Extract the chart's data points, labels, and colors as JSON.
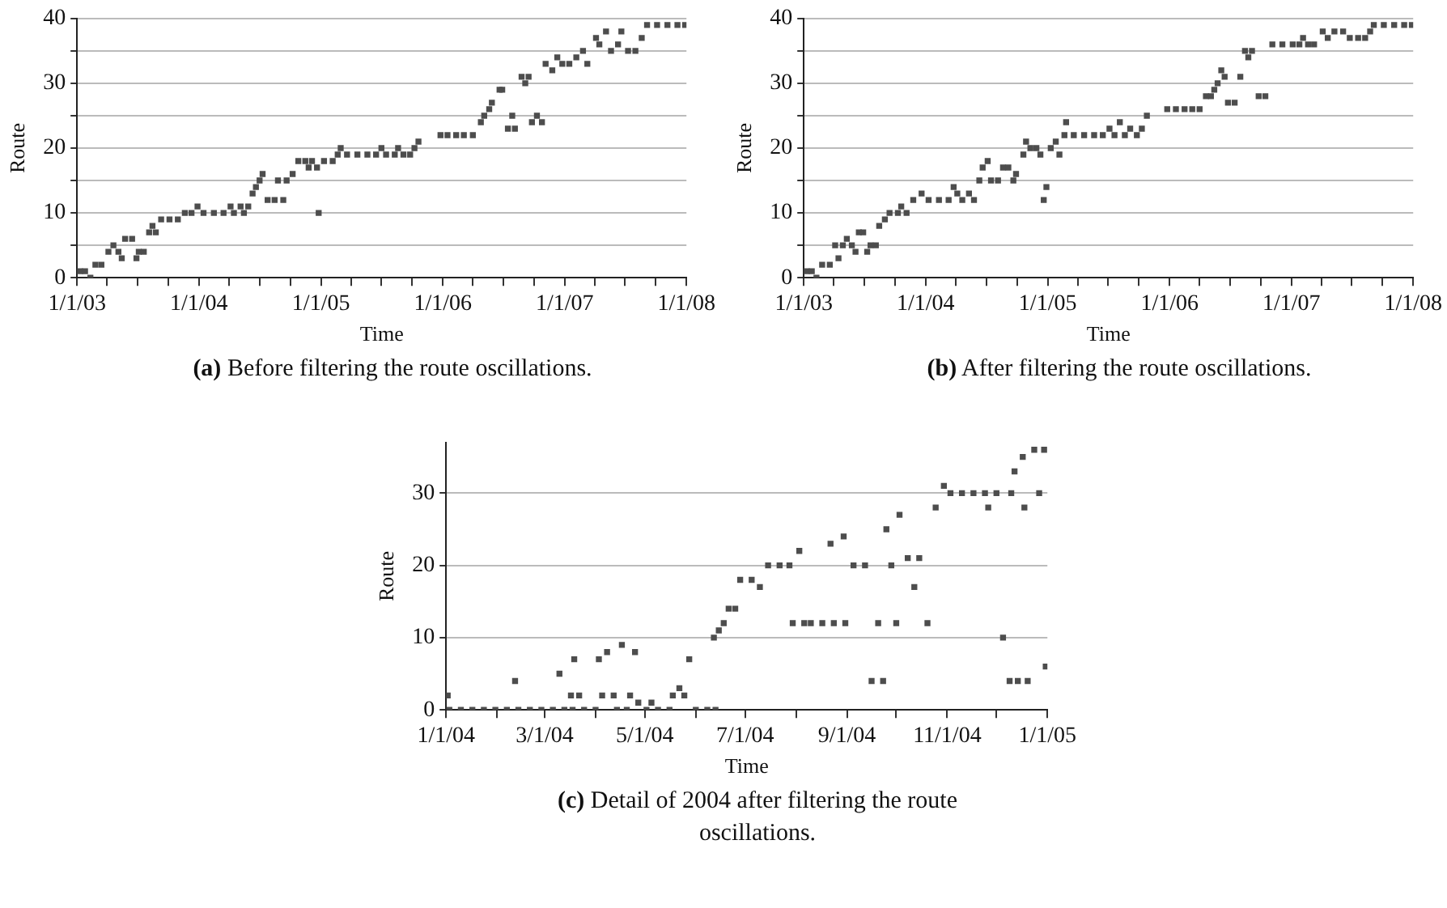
{
  "chart_data": [
    {
      "type": "scatter",
      "title": "(a) Before filtering the route oscillations.",
      "xlabel": "Time",
      "ylabel": "Route",
      "marker": "square",
      "grid": "y",
      "xlim": [
        "2003-01-01",
        "2008-01-01"
      ],
      "ylim": [
        0,
        40
      ],
      "xticks": [
        {
          "value": "2003-01-01",
          "label": "1/1/03"
        },
        {
          "value": "2003-04-01",
          "label": null
        },
        {
          "value": "2003-07-01",
          "label": null
        },
        {
          "value": "2003-10-01",
          "label": null
        },
        {
          "value": "2004-01-01",
          "label": "1/1/04"
        },
        {
          "value": "2004-04-01",
          "label": null
        },
        {
          "value": "2004-07-01",
          "label": null
        },
        {
          "value": "2004-10-01",
          "label": null
        },
        {
          "value": "2005-01-01",
          "label": "1/1/05"
        },
        {
          "value": "2005-04-01",
          "label": null
        },
        {
          "value": "2005-07-01",
          "label": null
        },
        {
          "value": "2005-10-01",
          "label": null
        },
        {
          "value": "2006-01-01",
          "label": "1/1/06"
        },
        {
          "value": "2006-04-01",
          "label": null
        },
        {
          "value": "2006-07-01",
          "label": null
        },
        {
          "value": "2006-10-01",
          "label": null
        },
        {
          "value": "2007-01-01",
          "label": "1/1/07"
        },
        {
          "value": "2007-04-01",
          "label": null
        },
        {
          "value": "2007-07-01",
          "label": null
        },
        {
          "value": "2007-10-01",
          "label": null
        },
        {
          "value": "2008-01-01",
          "label": "1/1/08"
        }
      ],
      "yticks": [
        0,
        {
          "value": 5,
          "label": null
        },
        10,
        {
          "value": 15,
          "label": null
        },
        20,
        {
          "value": 25,
          "label": null
        },
        30,
        {
          "value": 35,
          "label": null
        },
        40
      ],
      "series": [
        {
          "color": "#4d4d4d",
          "x": [
            "2003-01-10",
            "2003-01-25",
            "2003-02-10",
            "2003-02-25",
            "2003-03-15",
            "2003-04-05",
            "2003-04-20",
            "2003-05-05",
            "2003-05-15",
            "2003-05-25",
            "2003-06-15",
            "2003-06-28",
            "2003-07-05",
            "2003-07-20",
            "2003-08-05",
            "2003-08-15",
            "2003-08-25",
            "2003-09-10",
            "2003-10-05",
            "2003-10-30",
            "2003-11-20",
            "2003-12-10",
            "2003-12-28",
            "2004-01-15",
            "2004-02-15",
            "2004-03-15",
            "2004-04-05",
            "2004-04-15",
            "2004-05-05",
            "2004-05-15",
            "2004-05-28",
            "2004-06-10",
            "2004-06-20",
            "2004-07-01",
            "2004-07-10",
            "2004-07-25",
            "2004-08-15",
            "2004-09-10",
            "2004-08-25",
            "2004-09-20",
            "2004-10-08",
            "2004-10-25",
            "2004-11-15",
            "2004-12-05",
            "2004-11-25",
            "2004-12-20",
            "2004-12-25",
            "2005-01-10",
            "2005-02-05",
            "2005-02-20",
            "2005-03-01",
            "2005-03-20",
            "2005-04-20",
            "2005-05-20",
            "2005-06-15",
            "2005-07-01",
            "2005-07-15",
            "2005-08-10",
            "2005-08-20",
            "2005-09-05",
            "2005-09-25",
            "2005-10-08",
            "2005-10-20",
            "2005-12-25",
            "2006-01-15",
            "2006-02-10",
            "2006-03-05",
            "2006-04-01",
            "2006-04-25",
            "2006-05-05",
            "2006-05-20",
            "2006-05-28",
            "2006-06-20",
            "2006-06-28",
            "2006-07-15",
            "2006-08-05",
            "2006-07-28",
            "2006-08-25",
            "2006-09-05",
            "2006-09-15",
            "2006-09-25",
            "2006-10-10",
            "2006-10-25",
            "2006-11-05",
            "2006-11-25",
            "2006-12-10",
            "2006-12-25",
            "2007-01-15",
            "2007-02-05",
            "2007-02-25",
            "2007-03-10",
            "2007-04-05",
            "2007-04-15",
            "2007-05-05",
            "2007-05-20",
            "2007-06-10",
            "2007-06-20",
            "2007-07-10",
            "2007-08-01",
            "2007-08-20",
            "2007-09-05",
            "2007-10-05",
            "2007-11-05",
            "2007-12-05",
            "2007-12-28"
          ],
          "values": [
            1,
            1,
            0,
            2,
            2,
            4,
            5,
            4,
            3,
            6,
            6,
            3,
            4,
            4,
            7,
            8,
            7,
            9,
            9,
            9,
            10,
            10,
            11,
            10,
            10,
            10,
            11,
            10,
            11,
            10,
            11,
            13,
            14,
            15,
            16,
            12,
            12,
            12,
            15,
            15,
            16,
            18,
            18,
            18,
            17,
            17,
            10,
            18,
            18,
            19,
            20,
            19,
            19,
            19,
            19,
            20,
            19,
            19,
            20,
            19,
            19,
            20,
            21,
            22,
            22,
            22,
            22,
            22,
            24,
            25,
            26,
            27,
            29,
            29,
            23,
            23,
            25,
            31,
            30,
            31,
            24,
            25,
            24,
            33,
            32,
            34,
            33,
            33,
            34,
            35,
            33,
            37,
            36,
            38,
            35,
            36,
            38,
            35,
            35,
            37,
            39,
            39,
            39,
            39,
            39
          ]
        }
      ]
    },
    {
      "type": "scatter",
      "title": "(b) After filtering the route oscillations.",
      "xlabel": "Time",
      "ylabel": "Route",
      "marker": "square",
      "grid": "y",
      "xlim": [
        "2003-01-01",
        "2008-01-01"
      ],
      "ylim": [
        0,
        40
      ],
      "xticks": [
        {
          "value": "2003-01-01",
          "label": "1/1/03"
        },
        {
          "value": "2003-04-01",
          "label": null
        },
        {
          "value": "2003-07-01",
          "label": null
        },
        {
          "value": "2003-10-01",
          "label": null
        },
        {
          "value": "2004-01-01",
          "label": "1/1/04"
        },
        {
          "value": "2004-04-01",
          "label": null
        },
        {
          "value": "2004-07-01",
          "label": null
        },
        {
          "value": "2004-10-01",
          "label": null
        },
        {
          "value": "2005-01-01",
          "label": "1/1/05"
        },
        {
          "value": "2005-04-01",
          "label": null
        },
        {
          "value": "2005-07-01",
          "label": null
        },
        {
          "value": "2005-10-01",
          "label": null
        },
        {
          "value": "2006-01-01",
          "label": "1/1/06"
        },
        {
          "value": "2006-04-01",
          "label": null
        },
        {
          "value": "2006-07-01",
          "label": null
        },
        {
          "value": "2006-10-01",
          "label": null
        },
        {
          "value": "2007-01-01",
          "label": "1/1/07"
        },
        {
          "value": "2007-04-01",
          "label": null
        },
        {
          "value": "2007-07-01",
          "label": null
        },
        {
          "value": "2007-10-01",
          "label": null
        },
        {
          "value": "2008-01-01",
          "label": "1/1/08"
        }
      ],
      "yticks": [
        0,
        {
          "value": 5,
          "label": null
        },
        10,
        {
          "value": 15,
          "label": null
        },
        20,
        {
          "value": 25,
          "label": null
        },
        30,
        {
          "value": 35,
          "label": null
        },
        40
      ],
      "series": [
        {
          "color": "#4d4d4d",
          "x": [
            "2003-01-10",
            "2003-01-25",
            "2003-02-08",
            "2003-02-25",
            "2003-03-20",
            "2003-04-05",
            "2003-04-15",
            "2003-04-28",
            "2003-05-10",
            "2003-05-25",
            "2003-06-05",
            "2003-06-15",
            "2003-06-28",
            "2003-07-10",
            "2003-07-20",
            "2003-08-05",
            "2003-08-15",
            "2003-09-01",
            "2003-09-15",
            "2003-10-10",
            "2003-10-20",
            "2003-11-05",
            "2003-11-25",
            "2003-12-20",
            "2004-01-10",
            "2004-02-10",
            "2004-03-10",
            "2004-03-25",
            "2004-04-05",
            "2004-04-20",
            "2004-05-10",
            "2004-05-25",
            "2004-06-10",
            "2004-06-20",
            "2004-07-05",
            "2004-07-15",
            "2004-08-05",
            "2004-08-20",
            "2004-09-05",
            "2004-09-20",
            "2004-09-28",
            "2004-10-20",
            "2004-10-28",
            "2004-11-10",
            "2004-11-28",
            "2004-12-10",
            "2004-12-20",
            "2004-12-28",
            "2005-01-10",
            "2005-01-25",
            "2005-02-05",
            "2005-02-20",
            "2005-02-25",
            "2005-03-20",
            "2005-04-20",
            "2005-05-20",
            "2005-06-15",
            "2005-07-05",
            "2005-07-20",
            "2005-08-05",
            "2005-08-20",
            "2005-09-05",
            "2005-09-25",
            "2005-10-10",
            "2005-10-25",
            "2005-12-25",
            "2006-01-20",
            "2006-02-15",
            "2006-03-10",
            "2006-04-01",
            "2006-04-20",
            "2006-05-05",
            "2006-05-15",
            "2006-05-25",
            "2006-06-05",
            "2006-06-15",
            "2006-06-25",
            "2006-07-15",
            "2006-08-01",
            "2006-08-15",
            "2006-08-25",
            "2006-09-05",
            "2006-09-25",
            "2006-10-15",
            "2006-11-05",
            "2006-12-05",
            "2007-01-05",
            "2007-01-25",
            "2007-02-05",
            "2007-02-20",
            "2007-03-10",
            "2007-04-05",
            "2007-04-20",
            "2007-05-10",
            "2007-06-05",
            "2007-06-25",
            "2007-07-20",
            "2007-08-10",
            "2007-08-25",
            "2007-09-05",
            "2007-10-05",
            "2007-11-05",
            "2007-12-05",
            "2007-12-28"
          ],
          "values": [
            1,
            1,
            0,
            2,
            2,
            5,
            3,
            5,
            6,
            5,
            4,
            7,
            7,
            4,
            5,
            5,
            8,
            9,
            10,
            10,
            11,
            10,
            12,
            13,
            12,
            12,
            12,
            14,
            13,
            12,
            13,
            12,
            15,
            17,
            18,
            15,
            15,
            17,
            17,
            15,
            16,
            19,
            21,
            20,
            20,
            19,
            12,
            14,
            20,
            21,
            19,
            22,
            24,
            22,
            22,
            22,
            22,
            23,
            22,
            24,
            22,
            23,
            22,
            23,
            25,
            26,
            26,
            26,
            26,
            26,
            28,
            28,
            29,
            30,
            32,
            31,
            27,
            27,
            31,
            35,
            34,
            35,
            28,
            28,
            36,
            36,
            36,
            36,
            37,
            36,
            36,
            38,
            37,
            38,
            38,
            37,
            37,
            37,
            38,
            39,
            39,
            39,
            39,
            39
          ]
        }
      ]
    },
    {
      "type": "scatter",
      "title": "(c) Detail of 2004 after filtering the route oscillations.",
      "xlabel": "Time",
      "ylabel": "Route",
      "marker": "square",
      "grid": "y",
      "xlim": [
        "2004-01-01",
        "2005-01-01"
      ],
      "ylim": [
        0,
        37
      ],
      "xticks": [
        {
          "value": "2004-01-01",
          "label": "1/1/04"
        },
        {
          "value": "2004-02-01",
          "label": null
        },
        {
          "value": "2004-03-01",
          "label": "3/1/04"
        },
        {
          "value": "2004-04-01",
          "label": null
        },
        {
          "value": "2004-05-01",
          "label": "5/1/04"
        },
        {
          "value": "2004-06-01",
          "label": null
        },
        {
          "value": "2004-07-01",
          "label": "7/1/04"
        },
        {
          "value": "2004-08-01",
          "label": null
        },
        {
          "value": "2004-09-01",
          "label": "9/1/04"
        },
        {
          "value": "2004-10-01",
          "label": null
        },
        {
          "value": "2004-11-01",
          "label": "11/1/04"
        },
        {
          "value": "2004-12-01",
          "label": null
        },
        {
          "value": "2005-01-01",
          "label": "1/1/05"
        }
      ],
      "yticks": [
        0,
        10,
        20,
        30
      ],
      "series": [
        {
          "color": "#4d4d4d",
          "x": [
            "2004-01-02",
            "2004-01-03",
            "2004-01-10",
            "2004-01-17",
            "2004-01-24",
            "2004-01-31",
            "2004-02-07",
            "2004-02-12",
            "2004-02-14",
            "2004-02-21",
            "2004-02-28",
            "2004-03-06",
            "2004-03-10",
            "2004-03-13",
            "2004-03-17",
            "2004-03-18",
            "2004-03-19",
            "2004-03-22",
            "2004-03-25",
            "2004-04-01",
            "2004-04-03",
            "2004-04-05",
            "2004-04-08",
            "2004-04-12",
            "2004-04-14",
            "2004-04-17",
            "2004-04-20",
            "2004-04-22",
            "2004-04-25",
            "2004-04-27",
            "2004-05-02",
            "2004-05-05",
            "2004-05-09",
            "2004-05-16",
            "2004-05-18",
            "2004-05-22",
            "2004-05-25",
            "2004-05-28",
            "2004-06-01",
            "2004-06-08",
            "2004-06-13",
            "2004-06-12",
            "2004-06-15",
            "2004-06-18",
            "2004-06-21",
            "2004-06-25",
            "2004-06-28",
            "2004-07-05",
            "2004-07-10",
            "2004-07-15",
            "2004-07-22",
            "2004-07-28",
            "2004-07-30",
            "2004-08-03",
            "2004-08-06",
            "2004-08-10",
            "2004-08-17",
            "2004-08-22",
            "2004-08-24",
            "2004-08-31",
            "2004-08-30",
            "2004-09-05",
            "2004-09-12",
            "2004-09-16",
            "2004-09-20",
            "2004-09-23",
            "2004-09-25",
            "2004-09-28",
            "2004-10-01",
            "2004-10-03",
            "2004-10-08",
            "2004-10-12",
            "2004-10-15",
            "2004-10-20",
            "2004-10-25",
            "2004-10-30",
            "2004-11-03",
            "2004-11-10",
            "2004-11-17",
            "2004-11-24",
            "2004-11-26",
            "2004-12-01",
            "2004-12-05",
            "2004-12-09",
            "2004-12-10",
            "2004-12-12",
            "2004-12-14",
            "2004-12-17",
            "2004-12-18",
            "2004-12-20",
            "2004-12-24",
            "2004-12-27",
            "2004-12-30",
            "2004-12-31"
          ],
          "values": [
            2,
            0,
            0,
            0,
            0,
            0,
            0,
            4,
            0,
            0,
            0,
            0,
            5,
            0,
            2,
            0,
            7,
            2,
            0,
            0,
            7,
            2,
            8,
            2,
            0,
            9,
            0,
            2,
            8,
            1,
            0,
            1,
            0,
            0,
            2,
            3,
            2,
            7,
            0,
            0,
            0,
            10,
            11,
            12,
            14,
            14,
            18,
            18,
            17,
            20,
            20,
            20,
            12,
            22,
            12,
            12,
            12,
            23,
            12,
            12,
            24,
            20,
            20,
            4,
            12,
            4,
            25,
            20,
            12,
            27,
            21,
            17,
            21,
            12,
            28,
            31,
            30,
            30,
            30,
            30,
            28,
            30,
            10,
            4,
            30,
            33,
            4,
            35,
            28,
            4,
            36,
            30,
            36,
            6
          ]
        }
      ]
    }
  ]
}
